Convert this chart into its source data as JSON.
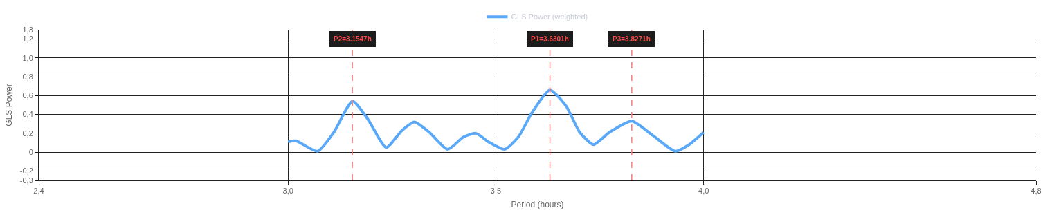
{
  "chart_data": {
    "type": "line",
    "xlabel": "Period (hours)",
    "ylabel": "GLS Power",
    "xlim": [
      2.4,
      4.8
    ],
    "xticks": [
      {
        "value": 2.4,
        "label": "2,4"
      },
      {
        "value": 3.0,
        "label": "3,0"
      },
      {
        "value": 3.5,
        "label": "3,5"
      },
      {
        "value": 4.0,
        "label": "4,0"
      },
      {
        "value": 4.8,
        "label": "4,8"
      }
    ],
    "ylim": [
      -0.3,
      1.3
    ],
    "yticks": [
      {
        "value": -0.3,
        "label": "-0,3"
      },
      {
        "value": -0.2,
        "label": "-0,2"
      },
      0,
      {
        "value": 0.2,
        "label": "0,2"
      },
      {
        "value": 0.4,
        "label": "0,4"
      },
      {
        "value": 0.6,
        "label": "0,6"
      },
      {
        "value": 0.8,
        "label": "0,8"
      },
      {
        "value": 1.0,
        "label": "1,0"
      },
      {
        "value": 1.2,
        "label": "1,2"
      },
      {
        "value": 1.3,
        "label": "1,3"
      }
    ],
    "grid": true,
    "legend": "top",
    "marker": "none",
    "line_style": "solid",
    "series": [
      {
        "name": "GLS Power (weighted)",
        "color": "#5aa9f8",
        "x": [
          3.0,
          3.019,
          3.071,
          3.11,
          3.155,
          3.192,
          3.236,
          3.274,
          3.304,
          3.34,
          3.384,
          3.422,
          3.452,
          3.482,
          3.521,
          3.554,
          3.587,
          3.63,
          3.669,
          3.702,
          3.735,
          3.773,
          3.827,
          3.877,
          3.932,
          3.965,
          4.0
        ],
        "values": [
          0.11,
          0.12,
          0.01,
          0.21,
          0.54,
          0.35,
          0.05,
          0.23,
          0.32,
          0.21,
          0.03,
          0.16,
          0.2,
          0.11,
          0.03,
          0.16,
          0.42,
          0.66,
          0.49,
          0.21,
          0.08,
          0.21,
          0.33,
          0.18,
          0.01,
          0.08,
          0.21
        ]
      }
    ],
    "ref_lines": [
      {
        "axis": "x",
        "value": 3.6301,
        "label": "P1=3.6301h",
        "color": "#f47c7c",
        "line_style": "dashed"
      },
      {
        "axis": "x",
        "value": 3.1547,
        "label": "P2=3.1547h",
        "color": "#f47c7c",
        "line_style": "dashed"
      },
      {
        "axis": "x",
        "value": 3.8271,
        "label": "P3=3.8271h",
        "color": "#f47c7c",
        "line_style": "dashed"
      }
    ]
  }
}
